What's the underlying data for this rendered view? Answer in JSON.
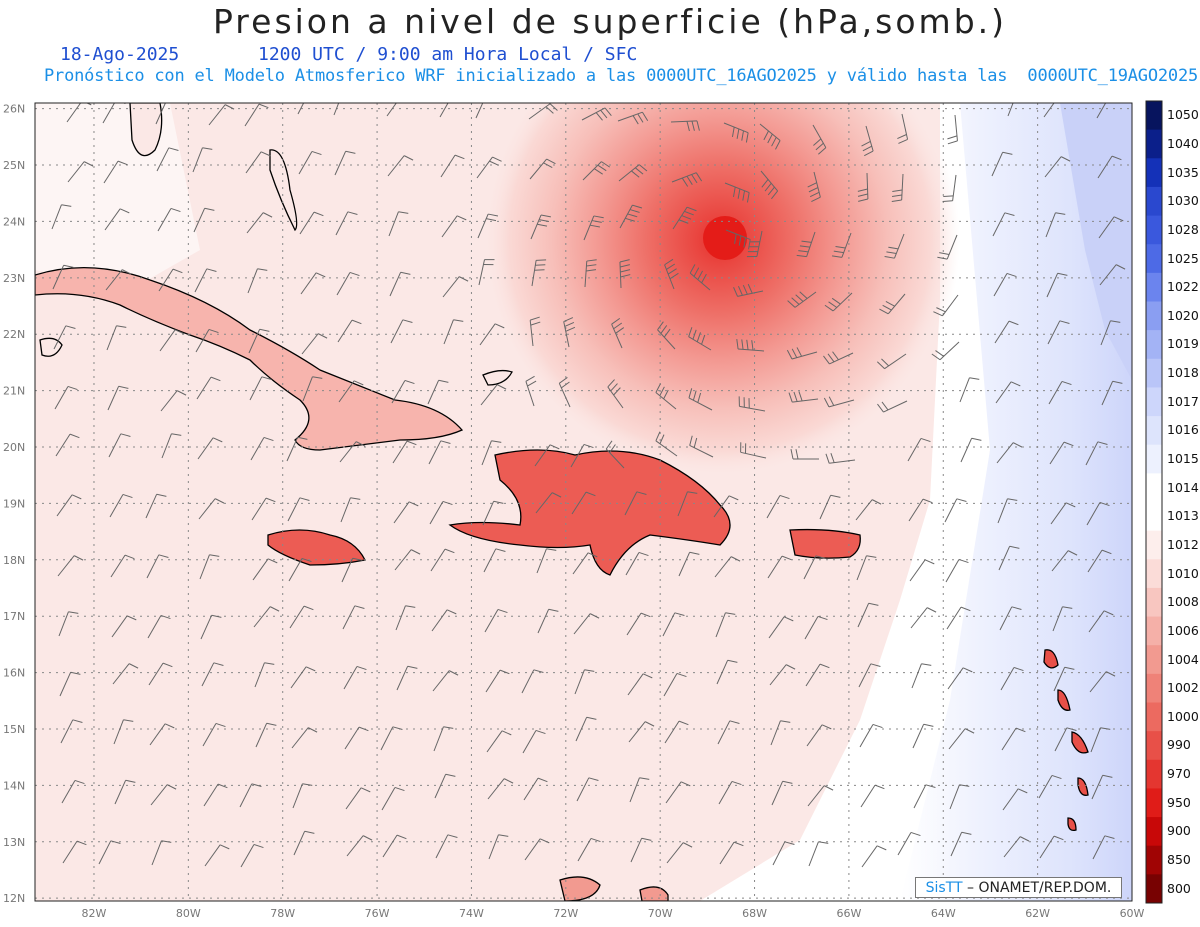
{
  "title": "Presion a nivel de superficie (hPa,somb.)",
  "date": "18-Ago-2025",
  "time_info": "1200 UTC / 9:00 am Hora Local / SFC",
  "forecast_info": "Pronóstico con el Modelo Atmosferico WRF inicializado a las 0000UTC_16AGO2025 y válido hasta las  0000UTC_19AGO2025",
  "credit": {
    "brand": "SisTT",
    "text": "– ONAMET/REP.DOM."
  },
  "lon_labels": [
    "82W",
    "80W",
    "78W",
    "76W",
    "74W",
    "72W",
    "70W",
    "68W",
    "66W",
    "64W",
    "62W",
    "60W"
  ],
  "lat_labels": [
    "26N",
    "25N",
    "24N",
    "23N",
    "22N",
    "21N",
    "20N",
    "19N",
    "18N",
    "17N",
    "16N",
    "15N",
    "14N",
    "13N",
    "12N"
  ],
  "colorbar": {
    "labels": [
      "1050",
      "1040",
      "1035",
      "1030",
      "1028",
      "1025",
      "1022",
      "1020",
      "1019",
      "1018",
      "1017",
      "1016",
      "1015",
      "1014",
      "1013",
      "1012",
      "1010",
      "1008",
      "1006",
      "1004",
      "1002",
      "1000",
      "990",
      "970",
      "950",
      "900",
      "850",
      "800"
    ],
    "colors": [
      "#07145e",
      "#0b1f8a",
      "#1431b8",
      "#2a48cf",
      "#3a58dd",
      "#4d6ae6",
      "#6b84ee",
      "#8a9ef2",
      "#a3b3f5",
      "#b9c5f8",
      "#cdd6fb",
      "#dde4fc",
      "#edf1fe",
      "#ffffff",
      "#ffffff",
      "#fdeeec",
      "#fbdcd8",
      "#f8c6c0",
      "#f5b0a8",
      "#f29a90",
      "#ef8278",
      "#ec6a60",
      "#e85048",
      "#e43630",
      "#e01c18",
      "#c80808",
      "#a00404",
      "#780202"
    ]
  },
  "low_center": {
    "lon": -68.6,
    "lat": 23.7,
    "central_pressure_hpa": 970
  }
}
